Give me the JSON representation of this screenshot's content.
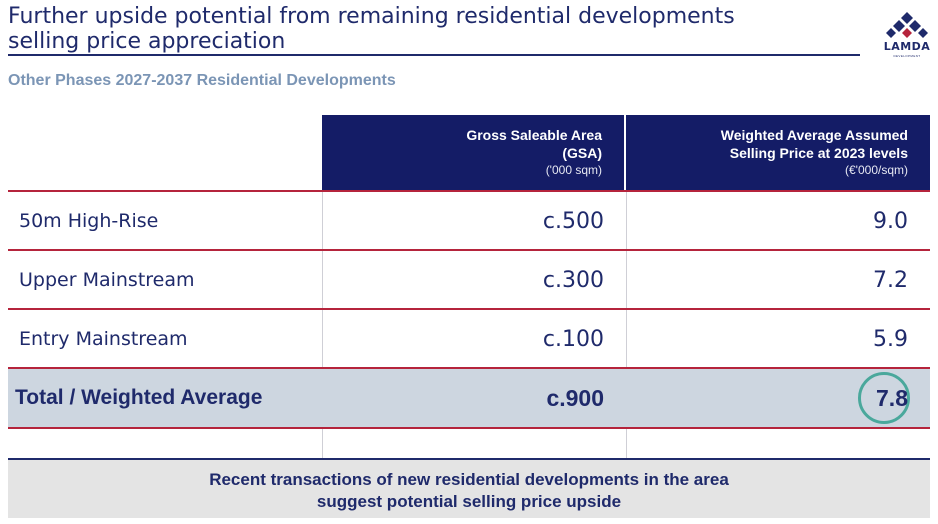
{
  "header": {
    "title_line1": "Further upside potential from remaining residential developments",
    "title_line2": "selling price appreciation",
    "logo_text": "LAMDA",
    "logo_sub": "DEVELOPMENT"
  },
  "subtitle": "Other Phases 2027-2037 Residential Developments",
  "table": {
    "columns": [
      {
        "line1": "Gross Saleable Area",
        "line2": "(GSA)",
        "unit": "('000 sqm)"
      },
      {
        "line1": "Weighted Average Assumed",
        "line2": "Selling Price at 2023 levels",
        "unit": "(€'000/sqm)"
      }
    ],
    "rows": [
      {
        "label": "50m High-Rise",
        "gsa": "c.500",
        "price": "9.0"
      },
      {
        "label": "Upper Mainstream",
        "gsa": "c.300",
        "price": "7.2"
      },
      {
        "label": "Entry Mainstream",
        "gsa": "c.100",
        "price": "5.9"
      }
    ],
    "total": {
      "label": "Total / Weighted Average",
      "gsa": "c.900",
      "price": "7.8"
    }
  },
  "note": {
    "line1": "Recent transactions of new residential developments in the area",
    "line2": "suggest potential selling price upside"
  },
  "colors": {
    "navy": "#141c66",
    "accent_red": "#b5243c",
    "highlight_circle": "#4aa89c",
    "total_row": "#cdd6e0"
  }
}
